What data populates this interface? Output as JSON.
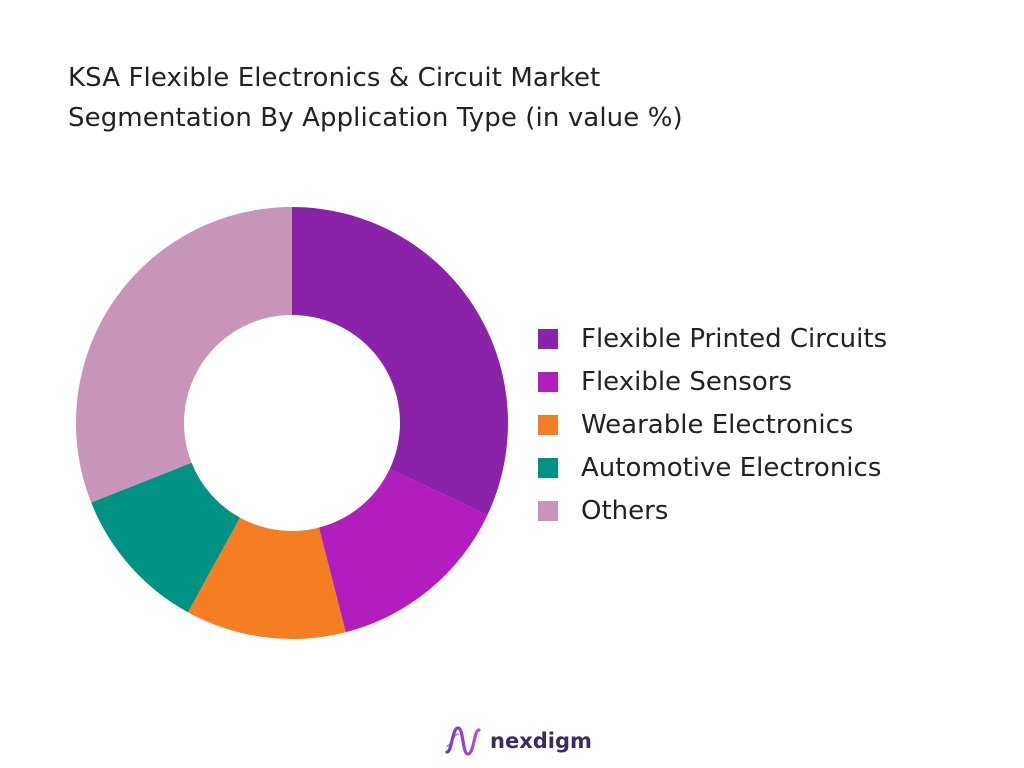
{
  "chart_data": {
    "type": "pie",
    "variant": "donut",
    "title_lines": [
      "KSA Flexible Electronics & Circuit Market",
      "Segmentation By Application Type (in value %)"
    ],
    "categories": [
      "Flexible Printed Circuits",
      "Flexible Sensors",
      "Wearable Electronics",
      "Automotive Electronics",
      "Others"
    ],
    "values": [
      32,
      14,
      12,
      11,
      31
    ],
    "colors": [
      "#8b23a8",
      "#b11ebd",
      "#f57e22",
      "#009384",
      "#c894b8"
    ],
    "legend_position": "right"
  },
  "brand": {
    "name": "nexdigm",
    "icon": "nexdigm-wave-logo"
  }
}
